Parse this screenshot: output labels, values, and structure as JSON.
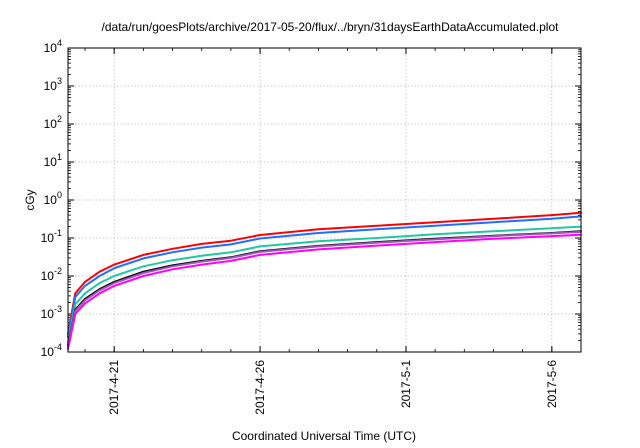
{
  "chart_data": {
    "type": "line",
    "title": "/data/run/goesPlots/archive/2017-05-20/flux/../bryn/31daysEarthDataAccumulated.plot",
    "xlabel": "Coordinated Universal Time (UTC)",
    "ylabel": "cGy",
    "yscale": "log",
    "ylim": [
      0.0001,
      10000
    ],
    "xlim": [
      "2017-04-19T10:00",
      "2017-05-07T00:00"
    ],
    "grid": true,
    "x_ticks": [
      "2017-4-21",
      "2017-4-26",
      "2017-5-1",
      "2017-5-6"
    ],
    "y_ticks": [
      {
        "base": "10",
        "exp": "-4",
        "value": 0.0001
      },
      {
        "base": "10",
        "exp": "-3",
        "value": 0.001
      },
      {
        "base": "10",
        "exp": "-2",
        "value": 0.01
      },
      {
        "base": "10",
        "exp": "-1",
        "value": 0.1
      },
      {
        "base": "10",
        "exp": "0",
        "value": 1
      },
      {
        "base": "10",
        "exp": "1",
        "value": 10
      },
      {
        "base": "10",
        "exp": "2",
        "value": 100
      },
      {
        "base": "10",
        "exp": "3",
        "value": 1000
      },
      {
        "base": "10",
        "exp": "4",
        "value": 10000
      }
    ],
    "x": [
      "2017-04-19T10:00",
      "2017-04-19T16:00",
      "2017-04-20T00:00",
      "2017-04-20T12:00",
      "2017-04-21T00:00",
      "2017-04-22T00:00",
      "2017-04-23T00:00",
      "2017-04-24T00:00",
      "2017-04-25T00:00",
      "2017-04-26T00:00",
      "2017-04-28T00:00",
      "2017-04-30T00:00",
      "2017-05-02T00:00",
      "2017-05-04T00:00",
      "2017-05-06T00:00",
      "2017-05-07T00:00"
    ],
    "series": [
      {
        "color": "#ff0000",
        "values": [
          0.0003,
          0.0035,
          0.007,
          0.013,
          0.02,
          0.036,
          0.052,
          0.07,
          0.085,
          0.12,
          0.17,
          0.21,
          0.26,
          0.32,
          0.4,
          0.46
        ]
      },
      {
        "color": "#1e6fff",
        "values": [
          0.00025,
          0.0028,
          0.0055,
          0.01,
          0.016,
          0.029,
          0.042,
          0.056,
          0.068,
          0.097,
          0.135,
          0.17,
          0.21,
          0.26,
          0.32,
          0.37
        ]
      },
      {
        "color": "#20c8a0",
        "values": [
          0.00018,
          0.0018,
          0.0035,
          0.0065,
          0.01,
          0.018,
          0.026,
          0.034,
          0.042,
          0.06,
          0.082,
          0.1,
          0.125,
          0.15,
          0.18,
          0.2
        ]
      },
      {
        "color": "#000000",
        "values": [
          0.00015,
          0.0013,
          0.0025,
          0.0045,
          0.007,
          0.013,
          0.019,
          0.025,
          0.031,
          0.045,
          0.062,
          0.078,
          0.095,
          0.115,
          0.135,
          0.15
        ]
      },
      {
        "color": "#9b59b6",
        "values": [
          0.00014,
          0.0012,
          0.0023,
          0.0042,
          0.0065,
          0.012,
          0.018,
          0.024,
          0.03,
          0.043,
          0.06,
          0.075,
          0.092,
          0.112,
          0.132,
          0.145
        ]
      },
      {
        "color": "#ff00ff",
        "values": [
          0.00012,
          0.001,
          0.0019,
          0.0035,
          0.0055,
          0.01,
          0.015,
          0.02,
          0.025,
          0.036,
          0.05,
          0.063,
          0.078,
          0.095,
          0.112,
          0.122
        ]
      }
    ]
  }
}
